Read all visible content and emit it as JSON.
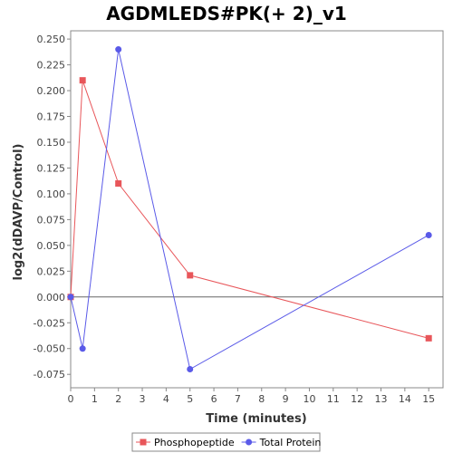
{
  "chart_data": {
    "type": "line",
    "title": "AGDMLEDS#PK(+ 2)_v1",
    "xlabel": "Time (minutes)",
    "ylabel": "log2(dDAVP/Control)",
    "xlim": [
      0,
      15.6
    ],
    "ylim": [
      -0.088,
      0.258
    ],
    "xticks": [
      0,
      1,
      2,
      3,
      4,
      5,
      6,
      7,
      8,
      9,
      10,
      11,
      12,
      13,
      14,
      15
    ],
    "yticks": [
      -0.075,
      -0.05,
      -0.025,
      0.0,
      0.025,
      0.05,
      0.075,
      0.1,
      0.125,
      0.15,
      0.175,
      0.2,
      0.225,
      0.25
    ],
    "ytick_labels": [
      "-0.075",
      "-0.050",
      "-0.025",
      "0.000",
      "0.025",
      "0.050",
      "0.075",
      "0.100",
      "0.125",
      "0.150",
      "0.175",
      "0.200",
      "0.225",
      "0.250"
    ],
    "grid": false,
    "zero_line": true,
    "legend_position": "bottom",
    "series": [
      {
        "name": "Phosphopeptide",
        "color": "#e8565a",
        "marker": "square",
        "x": [
          0,
          0.5,
          2,
          5,
          15
        ],
        "y": [
          0.0,
          0.21,
          0.11,
          0.021,
          -0.04
        ]
      },
      {
        "name": "Total Protein",
        "color": "#5a5ae8",
        "marker": "circle",
        "x": [
          0,
          0.5,
          2,
          5,
          15
        ],
        "y": [
          0.0,
          -0.05,
          0.24,
          -0.07,
          0.06
        ]
      }
    ]
  }
}
